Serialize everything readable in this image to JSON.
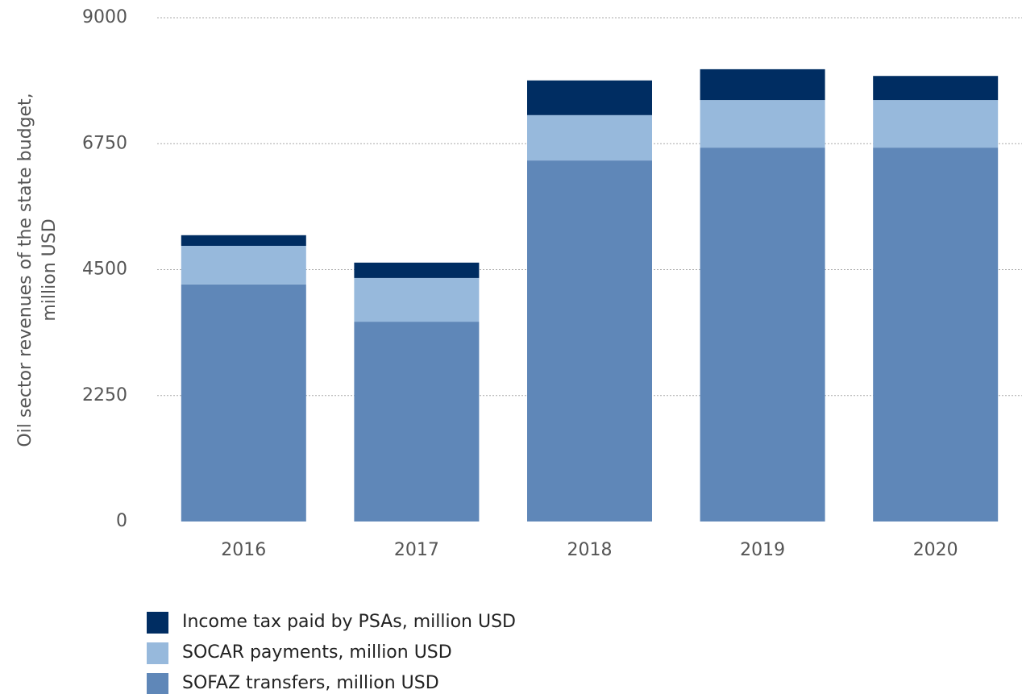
{
  "chart_data": {
    "type": "stacked_bar",
    "y_label": [
      "Oil sector revenues of the state budget,",
      "million USD"
    ],
    "categories": [
      "2016",
      "2017",
      "2018",
      "2019",
      "2020"
    ],
    "series": [
      {
        "name": "SOFAZ transfers, million USD",
        "color": "#5f87b8",
        "values": [
          4235,
          3570,
          6450,
          6680,
          6680
        ]
      },
      {
        "name": "SOCAR payments, million USD",
        "color": "#97b9dc",
        "values": [
          690,
          780,
          810,
          850,
          850
        ]
      },
      {
        "name": "Income tax paid by PSAs, million USD",
        "color": "#002d62",
        "values": [
          190,
          275,
          620,
          550,
          430
        ]
      }
    ],
    "ylim": [
      0,
      9000
    ],
    "yticks": [
      0,
      2250,
      4500,
      6750,
      9000
    ],
    "grid": true
  }
}
